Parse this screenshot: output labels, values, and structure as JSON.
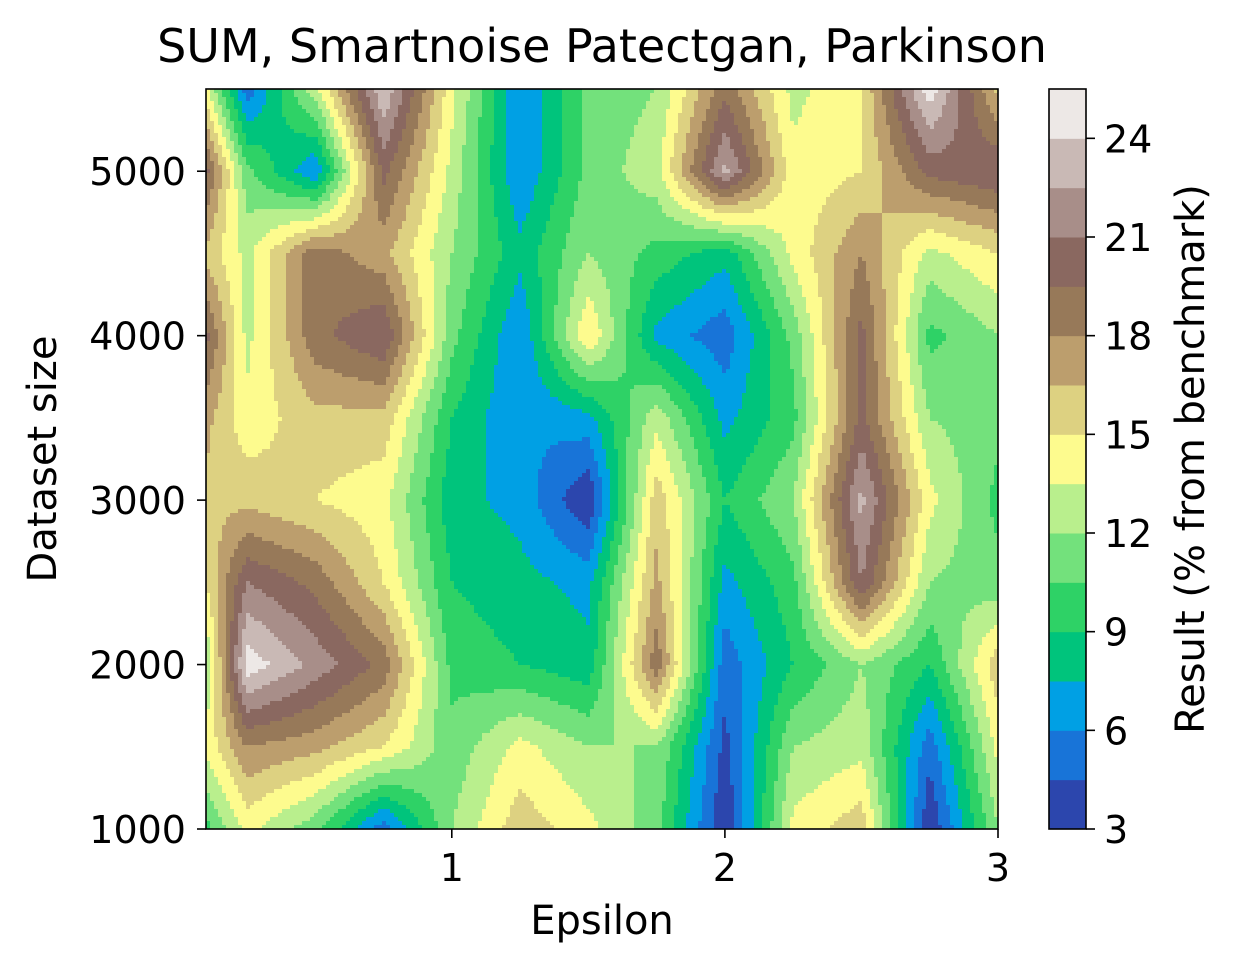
{
  "chart_data": {
    "type": "heatmap",
    "subtype": "filled-contour",
    "title": "SUM, Smartnoise Patectgan, Parkinson",
    "xlabel": "Epsilon",
    "ylabel": "Dataset size",
    "colorbar_label": "Result (% from benchmark)",
    "xlim": [
      0.1,
      3
    ],
    "ylim": [
      1000,
      5500
    ],
    "x_ticks": [
      1,
      2,
      3
    ],
    "y_ticks": [
      1000,
      2000,
      3000,
      4000,
      5000
    ],
    "colorbar_ticks": [
      3,
      6,
      9,
      12,
      15,
      18,
      21,
      24
    ],
    "levels": [
      3,
      4.5,
      6,
      7.5,
      9,
      10.5,
      12,
      13.5,
      15,
      16.5,
      18,
      19.5,
      21,
      22.5,
      24,
      25.5
    ],
    "level_colors": [
      "#2c46ad",
      "#1874d8",
      "#00a0e4",
      "#00c47c",
      "#2ed266",
      "#73e17c",
      "#b9ef8d",
      "#fdfb8e",
      "#ddd181",
      "#bc9e6d",
      "#977959",
      "#8a6860",
      "#a88e89",
      "#c9b9b5",
      "#ede8e6"
    ],
    "x": [
      0.1,
      0.25,
      0.5,
      0.75,
      1.0,
      1.25,
      1.5,
      1.75,
      2.0,
      2.25,
      2.5,
      2.75,
      3.0
    ],
    "y": [
      1000,
      1500,
      2000,
      2500,
      3000,
      3500,
      4000,
      4500,
      5000,
      5500
    ],
    "z": [
      [
        10,
        14,
        11,
        5,
        12,
        16,
        14,
        11,
        3,
        14,
        16,
        3,
        12
      ],
      [
        14,
        18,
        17,
        15,
        11,
        14,
        12,
        12,
        4,
        12,
        13,
        5,
        14
      ],
      [
        12,
        25,
        22,
        19,
        10,
        9,
        8,
        19,
        5,
        9,
        12,
        9,
        16
      ],
      [
        15,
        21,
        19,
        15,
        9,
        8,
        7,
        17,
        7,
        10,
        21,
        12,
        11
      ],
      [
        16,
        16,
        15,
        14,
        8,
        7,
        3,
        16,
        9,
        12,
        23,
        14,
        10
      ],
      [
        17,
        14,
        16,
        16,
        9,
        6,
        7,
        13,
        7,
        10,
        20,
        12,
        11
      ],
      [
        20,
        13,
        19,
        21,
        11,
        6,
        15,
        7,
        5,
        11,
        20,
        10,
        12
      ],
      [
        16,
        13,
        19,
        17,
        12,
        8,
        12,
        10,
        8,
        14,
        18,
        13,
        15
      ],
      [
        20,
        11,
        6,
        20,
        13,
        6,
        11,
        13,
        23,
        14,
        15,
        20,
        21
      ],
      [
        14,
        5,
        13,
        24,
        14,
        6,
        11,
        12,
        19,
        13,
        15,
        25,
        16
      ]
    ]
  }
}
